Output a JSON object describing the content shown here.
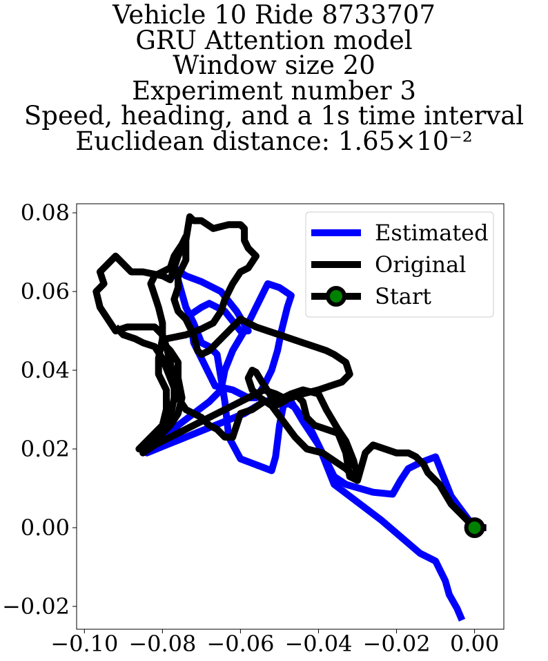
{
  "chart_data": {
    "type": "line",
    "title_lines": [
      "Vehicle 10 Ride 8733707",
      "GRU Attention model",
      "Window size 20",
      "Experiment number 3",
      "Speed, heading, and a 1s time interval",
      "Euclidean distance: 1.65×10⁻²"
    ],
    "xlabel": "",
    "ylabel": "",
    "xlim": [
      -0.102,
      0.0075
    ],
    "ylim": [
      -0.0258,
      0.0823
    ],
    "x_ticks": [
      -0.1,
      -0.08,
      -0.06,
      -0.04,
      -0.02,
      0.0
    ],
    "x_tick_labels": [
      "−0.10",
      "−0.08",
      "−0.06",
      "−0.04",
      "−0.02",
      "0.00"
    ],
    "y_ticks": [
      -0.02,
      0.0,
      0.02,
      0.04,
      0.06,
      0.08
    ],
    "y_tick_labels": [
      "−0.02",
      "0.00",
      "0.02",
      "0.04",
      "0.06",
      "0.08"
    ],
    "grid": false,
    "legend_position": "top-right",
    "series": [
      {
        "name": "Estimated",
        "color": "#0000ff",
        "points": [
          [
            -0.0032,
            -0.0235
          ],
          [
            -0.0045,
            -0.0205
          ],
          [
            -0.0065,
            -0.017
          ],
          [
            -0.0075,
            -0.0135
          ],
          [
            -0.01,
            -0.0085
          ],
          [
            -0.014,
            -0.0065
          ],
          [
            -0.024,
            0.002
          ],
          [
            -0.036,
            0.011
          ],
          [
            -0.04,
            0.021
          ],
          [
            -0.044,
            0.027
          ],
          [
            -0.047,
            0.032
          ],
          [
            -0.049,
            0.031
          ],
          [
            -0.05,
            0.026
          ],
          [
            -0.051,
            0.018
          ],
          [
            -0.052,
            0.0145
          ],
          [
            -0.06,
            0.0175
          ],
          [
            -0.063,
            0.023
          ],
          [
            -0.064,
            0.032
          ],
          [
            -0.065,
            0.038
          ],
          [
            -0.066,
            0.044
          ],
          [
            -0.068,
            0.046
          ],
          [
            -0.07,
            0.047
          ],
          [
            -0.072,
            0.052
          ],
          [
            -0.074,
            0.056
          ],
          [
            -0.076,
            0.063
          ],
          [
            -0.077,
            0.066
          ],
          [
            -0.074,
            0.064
          ],
          [
            -0.07,
            0.0625
          ],
          [
            -0.065,
            0.06
          ],
          [
            -0.061,
            0.055
          ],
          [
            -0.058,
            0.05
          ],
          [
            -0.06,
            0.05
          ],
          [
            -0.064,
            0.055
          ],
          [
            -0.068,
            0.057
          ],
          [
            -0.07,
            0.056
          ],
          [
            -0.073,
            0.054
          ],
          [
            -0.072,
            0.047
          ],
          [
            -0.07,
            0.043
          ],
          [
            -0.068,
            0.039
          ],
          [
            -0.0665,
            0.036
          ],
          [
            -0.062,
            0.035
          ],
          [
            -0.058,
            0.033
          ],
          [
            -0.056,
            0.033
          ],
          [
            -0.054,
            0.036
          ],
          [
            -0.052,
            0.04
          ],
          [
            -0.0505,
            0.045
          ],
          [
            -0.0495,
            0.05
          ],
          [
            -0.048,
            0.056
          ],
          [
            -0.047,
            0.059
          ],
          [
            -0.05,
            0.061
          ],
          [
            -0.053,
            0.062
          ],
          [
            -0.056,
            0.056
          ],
          [
            -0.059,
            0.05
          ],
          [
            -0.062,
            0.045
          ],
          [
            -0.064,
            0.04
          ],
          [
            -0.065,
            0.035
          ],
          [
            -0.068,
            0.032
          ],
          [
            -0.072,
            0.029
          ],
          [
            -0.076,
            0.026
          ],
          [
            -0.08,
            0.022
          ],
          [
            -0.084,
            0.019
          ],
          [
            -0.079,
            0.021
          ],
          [
            -0.074,
            0.023
          ],
          [
            -0.069,
            0.025
          ],
          [
            -0.064,
            0.027
          ],
          [
            -0.059,
            0.029
          ],
          [
            -0.054,
            0.032
          ],
          [
            -0.05,
            0.033
          ],
          [
            -0.046,
            0.0305
          ],
          [
            -0.042,
            0.025
          ],
          [
            -0.039,
            0.019
          ],
          [
            -0.036,
            0.013
          ],
          [
            -0.033,
            0.011
          ],
          [
            -0.026,
            0.009
          ],
          [
            -0.021,
            0.0085
          ],
          [
            -0.019,
            0.012
          ],
          [
            -0.017,
            0.015
          ],
          [
            -0.014,
            0.0165
          ],
          [
            -0.01,
            0.018
          ],
          [
            -0.008,
            0.013
          ],
          [
            -0.006,
            0.008
          ],
          [
            -0.003,
            0.004
          ],
          [
            0.0,
            0.0
          ],
          [
            0.003,
            0.0
          ]
        ]
      },
      {
        "name": "Original",
        "color": "#000000",
        "points": [
          [
            0.003,
            0.0
          ],
          [
            0.0,
            0.0
          ],
          [
            -0.003,
            0.003
          ],
          [
            -0.006,
            0.006
          ],
          [
            -0.009,
            0.011
          ],
          [
            -0.012,
            0.014
          ],
          [
            -0.013,
            0.016
          ],
          [
            -0.015,
            0.018
          ],
          [
            -0.017,
            0.019
          ],
          [
            -0.02,
            0.019
          ],
          [
            -0.023,
            0.02
          ],
          [
            -0.026,
            0.021
          ],
          [
            -0.028,
            0.019
          ],
          [
            -0.03,
            0.012
          ],
          [
            -0.032,
            0.013
          ],
          [
            -0.033,
            0.019
          ],
          [
            -0.035,
            0.024
          ],
          [
            -0.038,
            0.025
          ],
          [
            -0.041,
            0.026
          ],
          [
            -0.043,
            0.028
          ],
          [
            -0.044,
            0.032
          ],
          [
            -0.046,
            0.034
          ],
          [
            -0.049,
            0.032
          ],
          [
            -0.051,
            0.031
          ],
          [
            -0.0525,
            0.034
          ],
          [
            -0.0545,
            0.037
          ],
          [
            -0.056,
            0.0395
          ],
          [
            -0.057,
            0.04
          ],
          [
            -0.058,
            0.038
          ],
          [
            -0.057,
            0.035
          ],
          [
            -0.055,
            0.033
          ],
          [
            -0.052,
            0.031
          ],
          [
            -0.049,
            0.027
          ],
          [
            -0.046,
            0.023
          ],
          [
            -0.043,
            0.02
          ],
          [
            -0.039,
            0.019
          ],
          [
            -0.036,
            0.017
          ],
          [
            -0.033,
            0.015
          ],
          [
            -0.031,
            0.013
          ],
          [
            -0.03,
            0.013
          ],
          [
            -0.031,
            0.017
          ],
          [
            -0.033,
            0.022
          ],
          [
            -0.035,
            0.025
          ],
          [
            -0.038,
            0.03
          ],
          [
            -0.04,
            0.034
          ],
          [
            -0.044,
            0.035
          ],
          [
            -0.047,
            0.034
          ],
          [
            -0.049,
            0.033
          ],
          [
            -0.051,
            0.034
          ],
          [
            -0.054,
            0.035
          ],
          [
            -0.058,
            0.033
          ],
          [
            -0.062,
            0.031
          ],
          [
            -0.066,
            0.029
          ],
          [
            -0.07,
            0.027
          ],
          [
            -0.074,
            0.025
          ],
          [
            -0.078,
            0.023
          ],
          [
            -0.082,
            0.021
          ],
          [
            -0.085,
            0.019
          ],
          [
            -0.083,
            0.021
          ],
          [
            -0.08,
            0.024
          ],
          [
            -0.078,
            0.028
          ],
          [
            -0.077,
            0.033
          ],
          [
            -0.077,
            0.037
          ],
          [
            -0.078,
            0.042
          ],
          [
            -0.079,
            0.046
          ],
          [
            -0.08,
            0.049
          ],
          [
            -0.082,
            0.051
          ],
          [
            -0.085,
            0.051
          ],
          [
            -0.089,
            0.051
          ],
          [
            -0.092,
            0.05
          ],
          [
            -0.094,
            0.053
          ],
          [
            -0.096,
            0.056
          ],
          [
            -0.097,
            0.06
          ],
          [
            -0.095,
            0.062
          ],
          [
            -0.096,
            0.065
          ],
          [
            -0.094,
            0.067
          ],
          [
            -0.092,
            0.069
          ],
          [
            -0.09,
            0.067
          ],
          [
            -0.088,
            0.065
          ],
          [
            -0.085,
            0.065
          ],
          [
            -0.08,
            0.064
          ],
          [
            -0.078,
            0.063
          ],
          [
            -0.077,
            0.066
          ],
          [
            -0.076,
            0.069
          ],
          [
            -0.075,
            0.071
          ],
          [
            -0.074,
            0.073
          ],
          [
            -0.073,
            0.079
          ],
          [
            -0.072,
            0.078
          ],
          [
            -0.07,
            0.078
          ],
          [
            -0.067,
            0.076
          ],
          [
            -0.063,
            0.077
          ],
          [
            -0.06,
            0.077
          ],
          [
            -0.059,
            0.076
          ],
          [
            -0.059,
            0.073
          ],
          [
            -0.058,
            0.071
          ],
          [
            -0.056,
            0.069
          ],
          [
            -0.058,
            0.066
          ],
          [
            -0.06,
            0.065
          ],
          [
            -0.062,
            0.062
          ],
          [
            -0.064,
            0.058
          ],
          [
            -0.065,
            0.055
          ],
          [
            -0.067,
            0.052
          ],
          [
            -0.07,
            0.0505
          ],
          [
            -0.074,
            0.049
          ],
          [
            -0.079,
            0.048
          ],
          [
            -0.08,
            0.047
          ],
          [
            -0.078,
            0.045
          ],
          [
            -0.076,
            0.042
          ],
          [
            -0.076,
            0.038
          ],
          [
            -0.075,
            0.033
          ],
          [
            -0.076,
            0.029
          ],
          [
            -0.078,
            0.026
          ],
          [
            -0.08,
            0.024
          ],
          [
            -0.082,
            0.023
          ],
          [
            -0.084,
            0.021
          ],
          [
            -0.086,
            0.02
          ],
          [
            -0.083,
            0.023
          ],
          [
            -0.08,
            0.026
          ],
          [
            -0.079,
            0.03
          ],
          [
            -0.079,
            0.035
          ],
          [
            -0.081,
            0.039
          ],
          [
            -0.081,
            0.043
          ],
          [
            -0.08,
            0.048
          ],
          [
            -0.08,
            0.052
          ],
          [
            -0.081,
            0.056
          ],
          [
            -0.082,
            0.059
          ],
          [
            -0.083,
            0.062
          ],
          [
            -0.082,
            0.064
          ],
          [
            -0.08,
            0.065
          ],
          [
            -0.078,
            0.066
          ],
          [
            -0.077,
            0.069
          ],
          [
            -0.075,
            0.072
          ],
          [
            -0.074,
            0.074
          ],
          [
            -0.074,
            0.073
          ],
          [
            -0.074,
            0.068
          ],
          [
            -0.076,
            0.064
          ],
          [
            -0.076,
            0.061
          ],
          [
            -0.077,
            0.058
          ],
          [
            -0.076,
            0.055
          ],
          [
            -0.074,
            0.053
          ],
          [
            -0.072,
            0.049
          ],
          [
            -0.071,
            0.045
          ],
          [
            -0.07,
            0.044
          ],
          [
            -0.068,
            0.045
          ],
          [
            -0.065,
            0.048
          ],
          [
            -0.062,
            0.051
          ],
          [
            -0.06,
            0.053
          ],
          [
            -0.058,
            0.052
          ],
          [
            -0.056,
            0.051
          ],
          [
            -0.053,
            0.05
          ],
          [
            -0.05,
            0.049
          ],
          [
            -0.047,
            0.048
          ],
          [
            -0.044,
            0.047
          ],
          [
            -0.041,
            0.046
          ],
          [
            -0.038,
            0.045
          ],
          [
            -0.036,
            0.044
          ],
          [
            -0.033,
            0.042
          ],
          [
            -0.032,
            0.039
          ],
          [
            -0.034,
            0.037
          ],
          [
            -0.037,
            0.036
          ],
          [
            -0.04,
            0.035
          ],
          [
            -0.044,
            0.034
          ],
          [
            -0.047,
            0.033
          ],
          [
            -0.051,
            0.032
          ],
          [
            -0.054,
            0.032
          ],
          [
            -0.057,
            0.03
          ],
          [
            -0.06,
            0.029
          ],
          [
            -0.061,
            0.026
          ],
          [
            -0.062,
            0.023
          ],
          [
            -0.064,
            0.023
          ],
          [
            -0.066,
            0.025
          ],
          [
            -0.068,
            0.026
          ],
          [
            -0.07,
            0.028
          ],
          [
            -0.074,
            0.03
          ],
          [
            -0.076,
            0.033
          ],
          [
            -0.078,
            0.038
          ],
          [
            -0.08,
            0.043
          ],
          [
            -0.082,
            0.046
          ],
          [
            -0.085,
            0.047
          ],
          [
            -0.087,
            0.048
          ],
          [
            -0.09,
            0.049
          ],
          [
            -0.092,
            0.051
          ]
        ]
      },
      {
        "name": "Start",
        "color": "#000000",
        "marker_face_color": "#008000",
        "points": [
          [
            0.0,
            0.0
          ]
        ]
      }
    ]
  }
}
